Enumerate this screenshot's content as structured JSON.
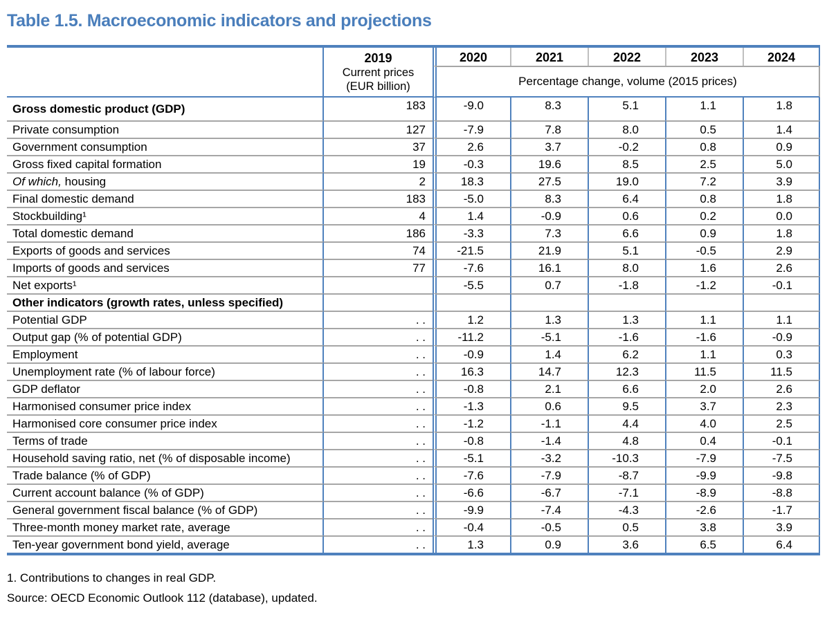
{
  "title": "Table 1.5. Macroeconomic indicators and projections",
  "colors": {
    "accent_blue": "#4f81bd",
    "title_blue": "#4a7ebb",
    "grid_gray": "#a6a6a6"
  },
  "header": {
    "base_year": "2019",
    "base_year_sub1": "Current prices",
    "base_year_sub2": "(EUR billion)",
    "years": [
      "2020",
      "2021",
      "2022",
      "2023",
      "2024"
    ],
    "span_label": "Percentage change, volume (2015 prices)"
  },
  "rows": [
    {
      "label": "Gross domestic product (GDP)",
      "style": "bold",
      "y2019": "183",
      "values": [
        "-9.0",
        "8.3",
        "5.1",
        "1.1",
        "1.8"
      ]
    },
    {
      "label": "Private consumption",
      "y2019": "127",
      "values": [
        "-7.9",
        "7.8",
        "8.0",
        "0.5",
        "1.4"
      ]
    },
    {
      "label": "Government consumption",
      "y2019": "37",
      "values": [
        "2.6",
        "3.7",
        "-0.2",
        "0.8",
        "0.9"
      ]
    },
    {
      "label": "Gross fixed capital formation",
      "y2019": "19",
      "values": [
        "-0.3",
        "19.6",
        "8.5",
        "2.5",
        "5.0"
      ]
    },
    {
      "italic_prefix": "Of which,",
      "label": "housing",
      "y2019": "2",
      "values": [
        "18.3",
        "27.5",
        "19.0",
        "7.2",
        "3.9"
      ]
    },
    {
      "label": "Final domestic demand",
      "y2019": "183",
      "values": [
        "-5.0",
        "8.3",
        "6.4",
        "0.8",
        "1.8"
      ]
    },
    {
      "label": "Stockbuilding¹",
      "y2019": "4",
      "values": [
        "1.4",
        "-0.9",
        "0.6",
        "0.2",
        "0.0"
      ]
    },
    {
      "label": "Total domestic demand",
      "y2019": "186",
      "values": [
        "-3.3",
        "7.3",
        "6.6",
        "0.9",
        "1.8"
      ]
    },
    {
      "label": "Exports of goods and services",
      "y2019": "74",
      "values": [
        "-21.5",
        "21.9",
        "5.1",
        "-0.5",
        "2.9"
      ]
    },
    {
      "label": "Imports of goods and services",
      "y2019": "77",
      "values": [
        "-7.6",
        "16.1",
        "8.0",
        "1.6",
        "2.6"
      ]
    },
    {
      "label": "Net exports¹",
      "y2019": "",
      "values": [
        "-5.5",
        "0.7",
        "-1.8",
        "-1.2",
        "-0.1"
      ]
    },
    {
      "label": "Other indicators (growth rates, unless specified)",
      "style": "bold",
      "y2019": "",
      "values": [
        "",
        "",
        "",
        "",
        ""
      ]
    },
    {
      "label": "Potential GDP",
      "y2019": ". .",
      "values": [
        "1.2",
        "1.3",
        "1.3",
        "1.1",
        "1.1"
      ]
    },
    {
      "label": "Output gap (% of potential GDP)",
      "y2019": ". .",
      "values": [
        "-11.2",
        "-5.1",
        "-1.6",
        "-1.6",
        "-0.9"
      ]
    },
    {
      "label": "Employment",
      "y2019": ". .",
      "values": [
        "-0.9",
        "1.4",
        "6.2",
        "1.1",
        "0.3"
      ]
    },
    {
      "label": "Unemployment rate (% of labour force)",
      "y2019": ". .",
      "values": [
        "16.3",
        "14.7",
        "12.3",
        "11.5",
        "11.5"
      ]
    },
    {
      "label": "GDP deflator",
      "y2019": ". .",
      "values": [
        "-0.8",
        "2.1",
        "6.6",
        "2.0",
        "2.6"
      ]
    },
    {
      "label": "Harmonised consumer price index",
      "y2019": ". .",
      "values": [
        "-1.3",
        "0.6",
        "9.5",
        "3.7",
        "2.3"
      ]
    },
    {
      "label": "Harmonised core consumer price index",
      "y2019": ". .",
      "values": [
        "-1.2",
        "-1.1",
        "4.4",
        "4.0",
        "2.5"
      ]
    },
    {
      "label": "Terms of trade",
      "y2019": ". .",
      "values": [
        "-0.8",
        "-1.4",
        "4.8",
        "0.4",
        "-0.1"
      ]
    },
    {
      "label": "Household saving ratio, net (% of disposable income)",
      "y2019": ". .",
      "values": [
        "-5.1",
        "-3.2",
        "-10.3",
        "-7.9",
        "-7.5"
      ]
    },
    {
      "label": "Trade balance (% of GDP)",
      "y2019": ". .",
      "values": [
        "-7.6",
        "-7.9",
        "-8.7",
        "-9.9",
        "-9.8"
      ]
    },
    {
      "label": "Current account balance (% of GDP)",
      "y2019": ". .",
      "values": [
        "-6.6",
        "-6.7",
        "-7.1",
        "-8.9",
        "-8.8"
      ]
    },
    {
      "label": "General government fiscal balance (% of GDP)",
      "y2019": ". .",
      "values": [
        "-9.9",
        "-7.4",
        "-4.3",
        "-2.6",
        "-1.7"
      ]
    },
    {
      "label": "Three-month money market rate, average",
      "y2019": ". .",
      "values": [
        "-0.4",
        "-0.5",
        "0.5",
        "3.8",
        "3.9"
      ]
    },
    {
      "label": "Ten-year government bond yield, average",
      "y2019": ". .",
      "values": [
        "1.3",
        "0.9",
        "3.6",
        "6.5",
        "6.4"
      ]
    }
  ],
  "footnotes": [
    "1. Contributions to changes in real GDP.",
    "Source: OECD Economic Outlook 112 (database), updated."
  ]
}
